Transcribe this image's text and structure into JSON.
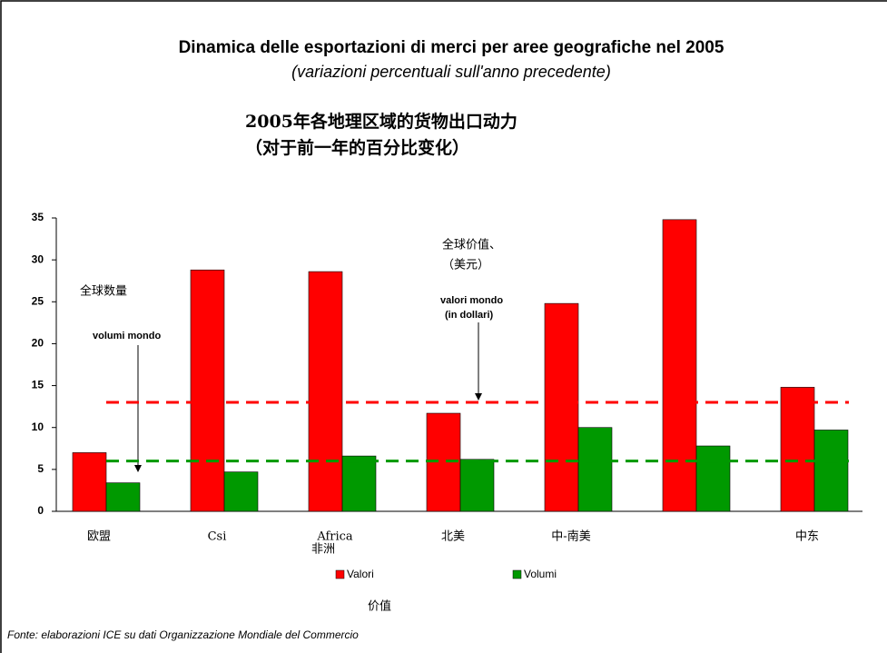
{
  "chart_data": {
    "type": "bar",
    "title": "Dinamica delle esportazioni di merci per aree geografiche nel 2005",
    "subtitle": "(variazioni percentuali sull'anno precedente)",
    "title_translation": "2005年各地理区域的货物出口动力",
    "subtitle_translation": "（对于前一年的百分比变化）",
    "categories": [
      "欧盟",
      "Csi",
      "Africa",
      "北美",
      "中-南美",
      null,
      "中东"
    ],
    "series": [
      {
        "name": "Valori",
        "color": "#ff0000",
        "values": [
          7,
          28.8,
          28.6,
          11.7,
          24.8,
          34.8,
          14.8
        ]
      },
      {
        "name": "Volumi",
        "color": "#009900",
        "values": [
          3.4,
          4.7,
          6.6,
          6.2,
          10.0,
          7.8,
          9.7
        ]
      }
    ],
    "reference_lines": [
      {
        "value": 13,
        "color": "#ff0000"
      },
      {
        "value": 6,
        "color": "#009900"
      }
    ],
    "annotations": [
      "全球价值、",
      "（美元）",
      "valori mondo",
      "(in dollari)",
      "全球数量",
      "volumi mondo",
      "非洲",
      "价值"
    ],
    "source": "Fonte: elaborazioni ICE su dati Organizzazione Mondiale del Commercio",
    "ylim": [
      0,
      35
    ],
    "yticks": [
      0,
      5,
      10,
      15,
      20,
      25,
      30,
      35
    ]
  }
}
